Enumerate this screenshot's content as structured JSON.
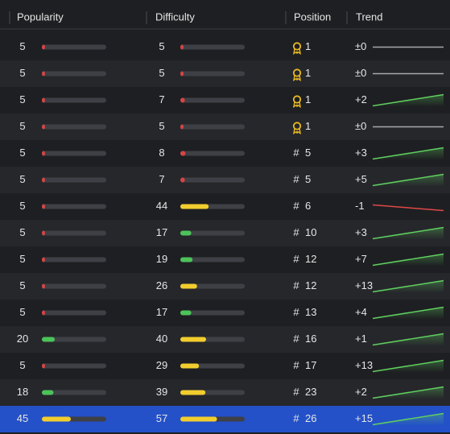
{
  "columns": [
    "Popularity",
    "Difficulty",
    "Position",
    "Trend"
  ],
  "position_prefix": "#",
  "selected_row": 14,
  "rows": [
    {
      "popularity": 5,
      "difficulty": 5,
      "position": 1,
      "trend": {
        "value": 0,
        "label": "±0"
      }
    },
    {
      "popularity": 5,
      "difficulty": 5,
      "position": 1,
      "trend": {
        "value": 0,
        "label": "±0"
      }
    },
    {
      "popularity": 5,
      "difficulty": 7,
      "position": 1,
      "trend": {
        "value": 2,
        "label": "+2"
      }
    },
    {
      "popularity": 5,
      "difficulty": 5,
      "position": 1,
      "trend": {
        "value": 0,
        "label": "±0"
      }
    },
    {
      "popularity": 5,
      "difficulty": 8,
      "position": 5,
      "trend": {
        "value": 3,
        "label": "+3"
      }
    },
    {
      "popularity": 5,
      "difficulty": 7,
      "position": 5,
      "trend": {
        "value": 5,
        "label": "+5"
      }
    },
    {
      "popularity": 5,
      "difficulty": 44,
      "position": 6,
      "trend": {
        "value": -1,
        "label": "-1"
      }
    },
    {
      "popularity": 5,
      "difficulty": 17,
      "position": 10,
      "trend": {
        "value": 3,
        "label": "+3"
      }
    },
    {
      "popularity": 5,
      "difficulty": 19,
      "position": 12,
      "trend": {
        "value": 7,
        "label": "+7"
      }
    },
    {
      "popularity": 5,
      "difficulty": 26,
      "position": 12,
      "trend": {
        "value": 13,
        "label": "+13"
      }
    },
    {
      "popularity": 5,
      "difficulty": 17,
      "position": 13,
      "trend": {
        "value": 4,
        "label": "+4"
      }
    },
    {
      "popularity": 20,
      "difficulty": 40,
      "position": 16,
      "trend": {
        "value": 1,
        "label": "+1"
      }
    },
    {
      "popularity": 5,
      "difficulty": 29,
      "position": 17,
      "trend": {
        "value": 13,
        "label": "+13"
      }
    },
    {
      "popularity": 18,
      "difficulty": 39,
      "position": 23,
      "trend": {
        "value": 2,
        "label": "+2"
      }
    },
    {
      "popularity": 45,
      "difficulty": 57,
      "position": 26,
      "trend": {
        "value": 15,
        "label": "+15"
      }
    }
  ]
}
